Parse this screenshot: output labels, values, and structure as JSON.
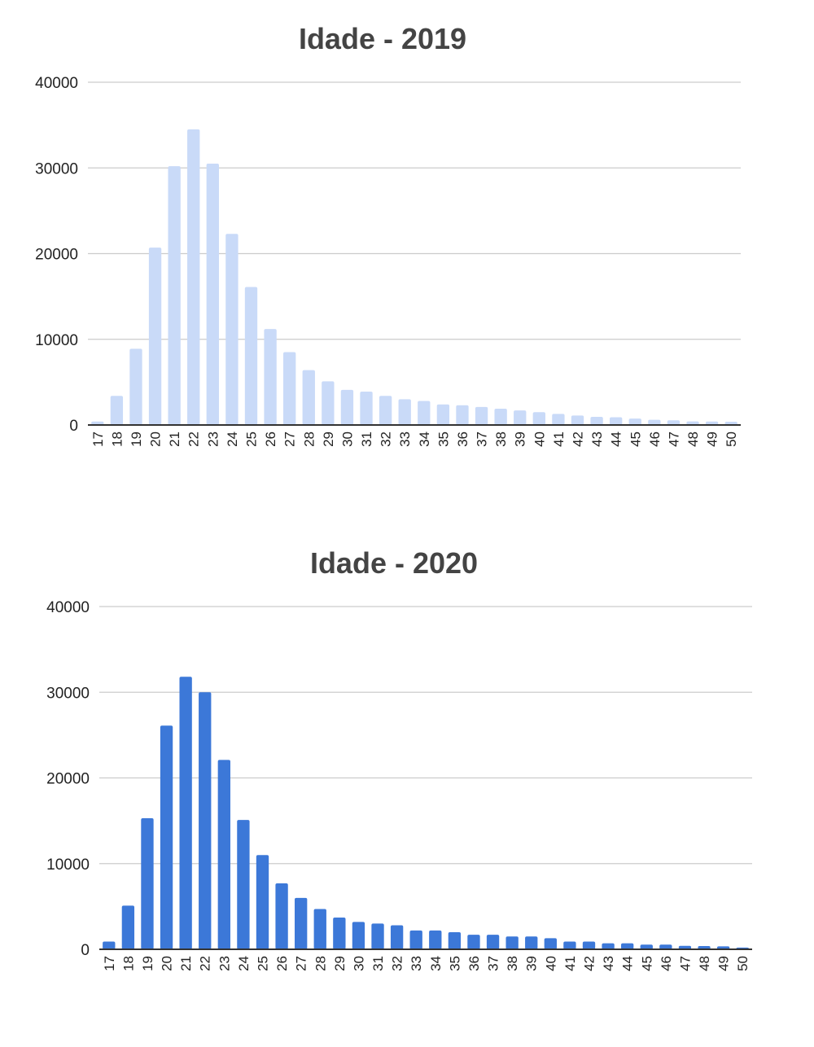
{
  "chart_data": [
    {
      "type": "bar",
      "title": "Idade - 2019",
      "xlabel": "",
      "ylabel": "",
      "ylim": [
        0,
        40000
      ],
      "yticks": [
        "0",
        "10000",
        "20000",
        "30000",
        "40000"
      ],
      "grid": true,
      "color": "#c9daf8",
      "categories": [
        "17",
        "18",
        "19",
        "20",
        "21",
        "22",
        "23",
        "24",
        "25",
        "26",
        "27",
        "28",
        "29",
        "30",
        "31",
        "32",
        "33",
        "34",
        "35",
        "36",
        "37",
        "38",
        "39",
        "40",
        "41",
        "42",
        "43",
        "44",
        "45",
        "46",
        "47",
        "48",
        "49",
        "50"
      ],
      "values": [
        400,
        3400,
        8900,
        20700,
        30200,
        34500,
        30500,
        22300,
        16100,
        11200,
        8500,
        6400,
        5100,
        4100,
        3900,
        3400,
        3000,
        2800,
        2400,
        2300,
        2100,
        1900,
        1700,
        1500,
        1300,
        1100,
        950,
        900,
        750,
        600,
        550,
        420,
        400,
        380
      ]
    },
    {
      "type": "bar",
      "title": "Idade - 2020",
      "xlabel": "",
      "ylabel": "",
      "ylim": [
        0,
        40000
      ],
      "yticks": [
        "0",
        "10000",
        "20000",
        "30000",
        "40000"
      ],
      "grid": true,
      "color": "#3c78d8",
      "categories": [
        "17",
        "18",
        "19",
        "20",
        "21",
        "22",
        "23",
        "24",
        "25",
        "26",
        "27",
        "28",
        "29",
        "30",
        "31",
        "32",
        "33",
        "34",
        "35",
        "36",
        "37",
        "38",
        "39",
        "40",
        "41",
        "42",
        "43",
        "44",
        "45",
        "46",
        "47",
        "48",
        "49",
        "50"
      ],
      "values": [
        900,
        5100,
        15300,
        26100,
        31800,
        30000,
        22100,
        15100,
        11000,
        7700,
        6000,
        4700,
        3700,
        3200,
        3000,
        2800,
        2200,
        2200,
        2000,
        1700,
        1700,
        1500,
        1500,
        1300,
        900,
        900,
        700,
        700,
        550,
        550,
        400,
        380,
        350,
        200
      ]
    }
  ]
}
